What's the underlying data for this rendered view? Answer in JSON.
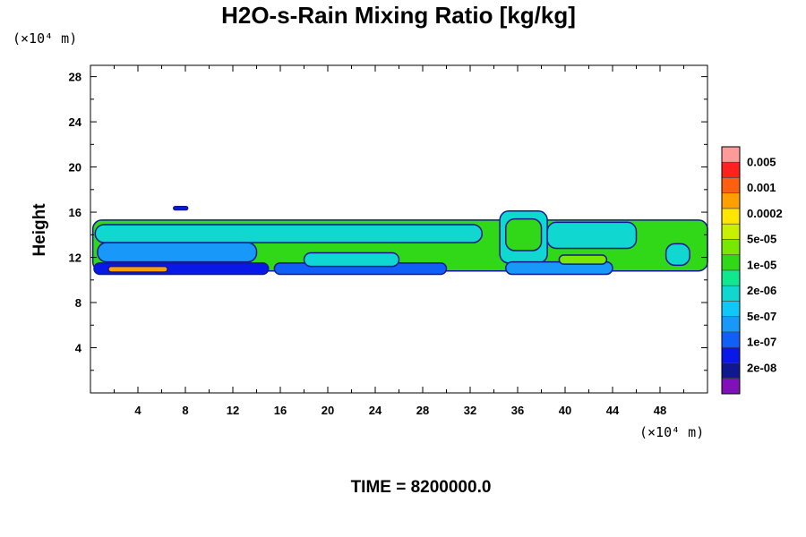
{
  "chart_data": {
    "type": "heatmap",
    "title": "H2O-s-Rain Mixing Ratio [kg/kg]",
    "ylabel": "Height",
    "xlabel": "",
    "y_unit": "(×10⁴ m)",
    "x_unit": "(×10⁴ m)",
    "xlim": [
      0,
      52
    ],
    "ylim": [
      0,
      29
    ],
    "x_ticks": [
      "4",
      "8",
      "12",
      "16",
      "20",
      "24",
      "28",
      "32",
      "36",
      "40",
      "44",
      "48"
    ],
    "x_tick_values": [
      4,
      8,
      12,
      16,
      20,
      24,
      28,
      32,
      36,
      40,
      44,
      48
    ],
    "y_ticks": [
      "4",
      "8",
      "12",
      "16",
      "20",
      "24",
      "28"
    ],
    "y_tick_values": [
      4,
      8,
      12,
      16,
      20,
      24,
      28
    ],
    "colorbar": {
      "labels": [
        "0.005",
        "0.001",
        "0.0002",
        "5e-05",
        "1e-05",
        "2e-06",
        "5e-07",
        "1e-07",
        "2e-08"
      ],
      "colors": [
        "#ff9a9a",
        "#ff2020",
        "#ff6010",
        "#ffa000",
        "#ffe600",
        "#c8f000",
        "#78e800",
        "#30d818",
        "#10e890",
        "#10d8d0",
        "#10c8f8",
        "#1898f8",
        "#1060f8",
        "#0818e8",
        "#101890",
        "#8010b8"
      ]
    },
    "bands": [
      {
        "x0": 0.2,
        "x1": 52,
        "y0": 10.8,
        "y1": 15.3,
        "level": 7
      },
      {
        "x0": 0.4,
        "x1": 33,
        "y0": 13.3,
        "y1": 14.9,
        "level": 9
      },
      {
        "x0": 0.6,
        "x1": 14,
        "y0": 11.6,
        "y1": 13.3,
        "level": 11
      },
      {
        "x0": 0.3,
        "x1": 15,
        "y0": 10.5,
        "y1": 11.5,
        "level": 13
      },
      {
        "x0": 1.5,
        "x1": 6.5,
        "y0": 10.7,
        "y1": 11.2,
        "level": 3
      },
      {
        "x0": 15.5,
        "x1": 30,
        "y0": 10.5,
        "y1": 11.5,
        "level": 12
      },
      {
        "x0": 18,
        "x1": 26,
        "y0": 11.2,
        "y1": 12.4,
        "level": 9
      },
      {
        "x0": 34.5,
        "x1": 38.5,
        "y0": 11.5,
        "y1": 16.1,
        "level": 9
      },
      {
        "x0": 35,
        "x1": 38,
        "y0": 12.6,
        "y1": 15.4,
        "level": 7
      },
      {
        "x0": 38.5,
        "x1": 46,
        "y0": 12.8,
        "y1": 15.1,
        "level": 9
      },
      {
        "x0": 35,
        "x1": 44,
        "y0": 10.5,
        "y1": 11.6,
        "level": 11
      },
      {
        "x0": 39.5,
        "x1": 43.5,
        "y0": 11.4,
        "y1": 12.2,
        "level": 6
      },
      {
        "x0": 48.5,
        "x1": 50.5,
        "y0": 11.3,
        "y1": 13.2,
        "level": 9
      },
      {
        "x0": 7,
        "x1": 8.2,
        "y0": 16.2,
        "y1": 16.5,
        "level": 13
      }
    ],
    "time_label": "TIME = 8200000.0"
  }
}
